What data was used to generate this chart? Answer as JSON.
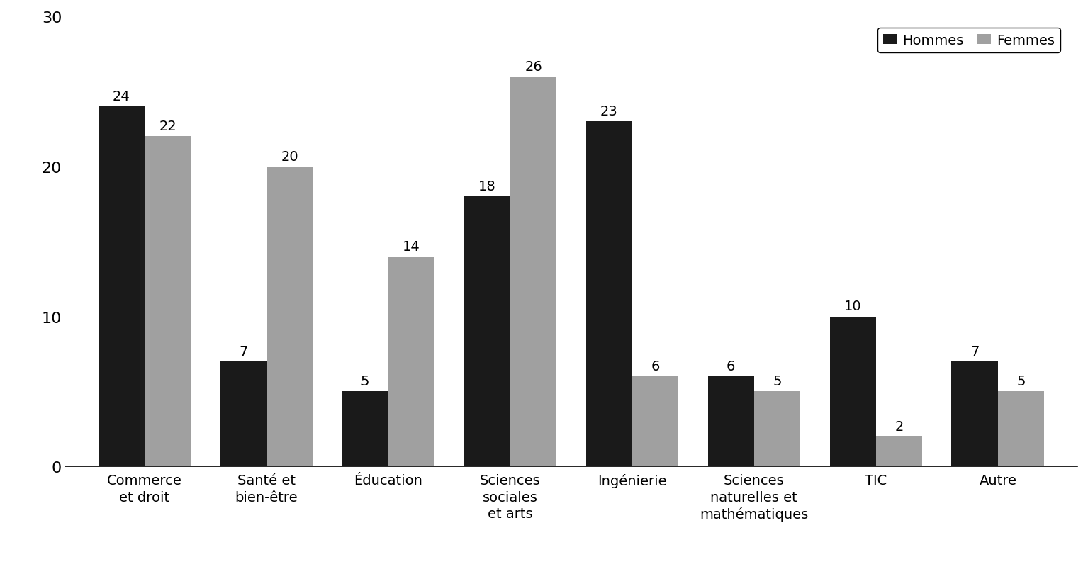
{
  "categories": [
    "Commerce\net droit",
    "Santé et\nbien-être",
    "Éducation",
    "Sciences\nsociales\net arts",
    "Ingénierie",
    "Sciences\nnaturelles et\nmathématiques",
    "TIC",
    "Autre"
  ],
  "hommes": [
    24,
    7,
    5,
    18,
    23,
    6,
    10,
    7
  ],
  "femmes": [
    22,
    20,
    14,
    26,
    6,
    5,
    2,
    5
  ],
  "color_hommes": "#1a1a1a",
  "color_femmes": "#a0a0a0",
  "ylim": [
    0,
    30
  ],
  "yticks": [
    0,
    10,
    20,
    30
  ],
  "bar_width": 0.38,
  "label_hommes": "Hommes",
  "label_femmes": "Femmes",
  "background_color": "#ffffff",
  "tick_fontsize": 14,
  "value_fontsize": 14,
  "legend_fontsize": 14,
  "ytick_fontsize": 16
}
